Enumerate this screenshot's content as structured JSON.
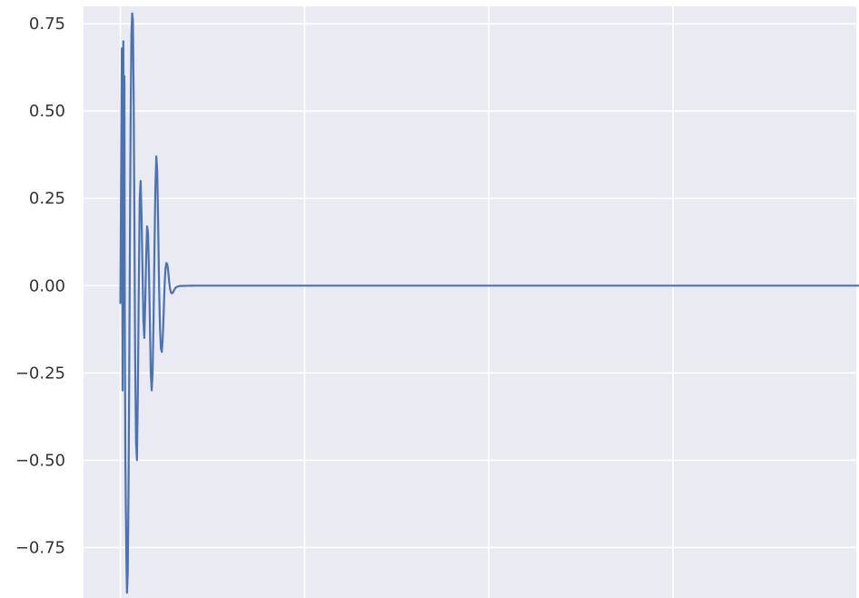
{
  "chart_data": {
    "type": "line",
    "title": "",
    "xlabel": "",
    "ylabel": "",
    "xlim": [
      -200,
      4000
    ],
    "ylim": [
      -0.895,
      0.8
    ],
    "grid": true,
    "x_gridlines": [
      0,
      1000,
      2000,
      3000,
      4000
    ],
    "y_ticks": [
      0.75,
      0.5,
      0.25,
      0.0,
      -0.25,
      -0.5,
      -0.75
    ],
    "y_tick_labels": [
      "0.75",
      "0.50",
      "0.25",
      "0.00",
      "−0.25",
      "−0.50",
      "−0.75"
    ],
    "series": [
      {
        "color": "#4c72b0",
        "x": [
          0,
          8,
          12,
          16,
          20,
          22,
          24,
          27,
          30,
          33,
          36,
          40,
          44,
          48,
          52,
          56,
          60,
          64,
          68,
          72,
          76,
          80,
          85,
          90,
          95,
          100,
          105,
          110,
          115,
          120,
          125,
          130,
          135,
          140,
          145,
          150,
          155,
          160,
          165,
          170,
          175,
          180,
          185,
          190,
          195,
          200,
          205,
          210,
          215,
          220,
          225,
          230,
          235,
          240,
          245,
          250,
          255,
          260,
          265,
          270,
          275,
          280,
          285,
          290,
          295,
          300,
          305,
          310,
          315,
          320,
          325,
          330,
          335,
          340,
          345,
          350,
          355,
          360,
          365,
          370,
          375,
          380,
          385,
          390,
          395,
          400,
          405,
          410,
          420,
          430,
          440,
          450,
          460,
          470,
          480,
          490,
          500,
          520,
          540,
          560,
          580,
          600,
          650,
          700,
          800,
          900,
          1000,
          1100,
          1200,
          1300,
          1400,
          1500,
          1600,
          1700,
          1800,
          1900,
          2000,
          2100,
          2200,
          2300,
          2400,
          2500,
          2600,
          2700,
          2800,
          2900,
          3000,
          3100,
          3200,
          3300,
          3400,
          3500,
          3600,
          3700,
          3800,
          3900,
          4000,
          4190
        ],
        "y": [
          -0.05,
          0.68,
          -0.3,
          0.7,
          0.2,
          0.6,
          -0.1,
          -0.5,
          -0.65,
          -0.8,
          -0.88,
          -0.82,
          -0.6,
          -0.25,
          0.15,
          0.5,
          0.72,
          0.78,
          0.76,
          0.55,
          0.2,
          -0.2,
          -0.45,
          -0.5,
          -0.3,
          0.0,
          0.25,
          0.3,
          0.2,
          0.05,
          -0.1,
          -0.15,
          -0.05,
          0.08,
          0.17,
          0.15,
          0.05,
          -0.1,
          -0.25,
          -0.3,
          -0.25,
          -0.1,
          0.1,
          0.28,
          0.37,
          0.33,
          0.18,
          0.0,
          -0.12,
          -0.18,
          -0.19,
          -0.15,
          -0.08,
          0.0,
          0.05,
          0.065,
          0.06,
          0.04,
          0.01,
          -0.01,
          -0.02,
          -0.022,
          -0.02,
          -0.015,
          -0.01,
          -0.006,
          -0.004,
          -0.003,
          -0.002,
          -0.0015,
          -0.001,
          -0.001,
          -0.001,
          -0.0008,
          -0.0008,
          -0.0007,
          -0.0006,
          -0.0005,
          -0.0005,
          -0.0005,
          -0.0004,
          -0.0004,
          -0.0003,
          -0.0003,
          -0.0003,
          -0.0002,
          -0.0002,
          -0.0002,
          -0.0002,
          -0.0002,
          -0.0001,
          -0.0001,
          -0.0001,
          -0.0001,
          -0.0001,
          -0.0001,
          -0.0001,
          -0.0001,
          -0.0001,
          -0.0001,
          -0.0001,
          -0.0001,
          -0.0001,
          -0.0001,
          -0.0001,
          -0.0001,
          -0.0001,
          -0.0001,
          -0.0001,
          -0.0001,
          -0.0001,
          -0.0001,
          -0.0001,
          -0.0001,
          -0.0001,
          -0.0001,
          -0.0001,
          -0.0001,
          -0.0001,
          -0.0001,
          -0.0001,
          -0.0001,
          -0.0001,
          -0.0001,
          -0.0001,
          -0.0001,
          -0.0001,
          -0.0001,
          -0.0001,
          -0.0001,
          -0.0001,
          -0.0001,
          -0.0001,
          -0.0001,
          -0.0001,
          -0.0001,
          -0.0001,
          -0.0001
        ]
      }
    ]
  }
}
